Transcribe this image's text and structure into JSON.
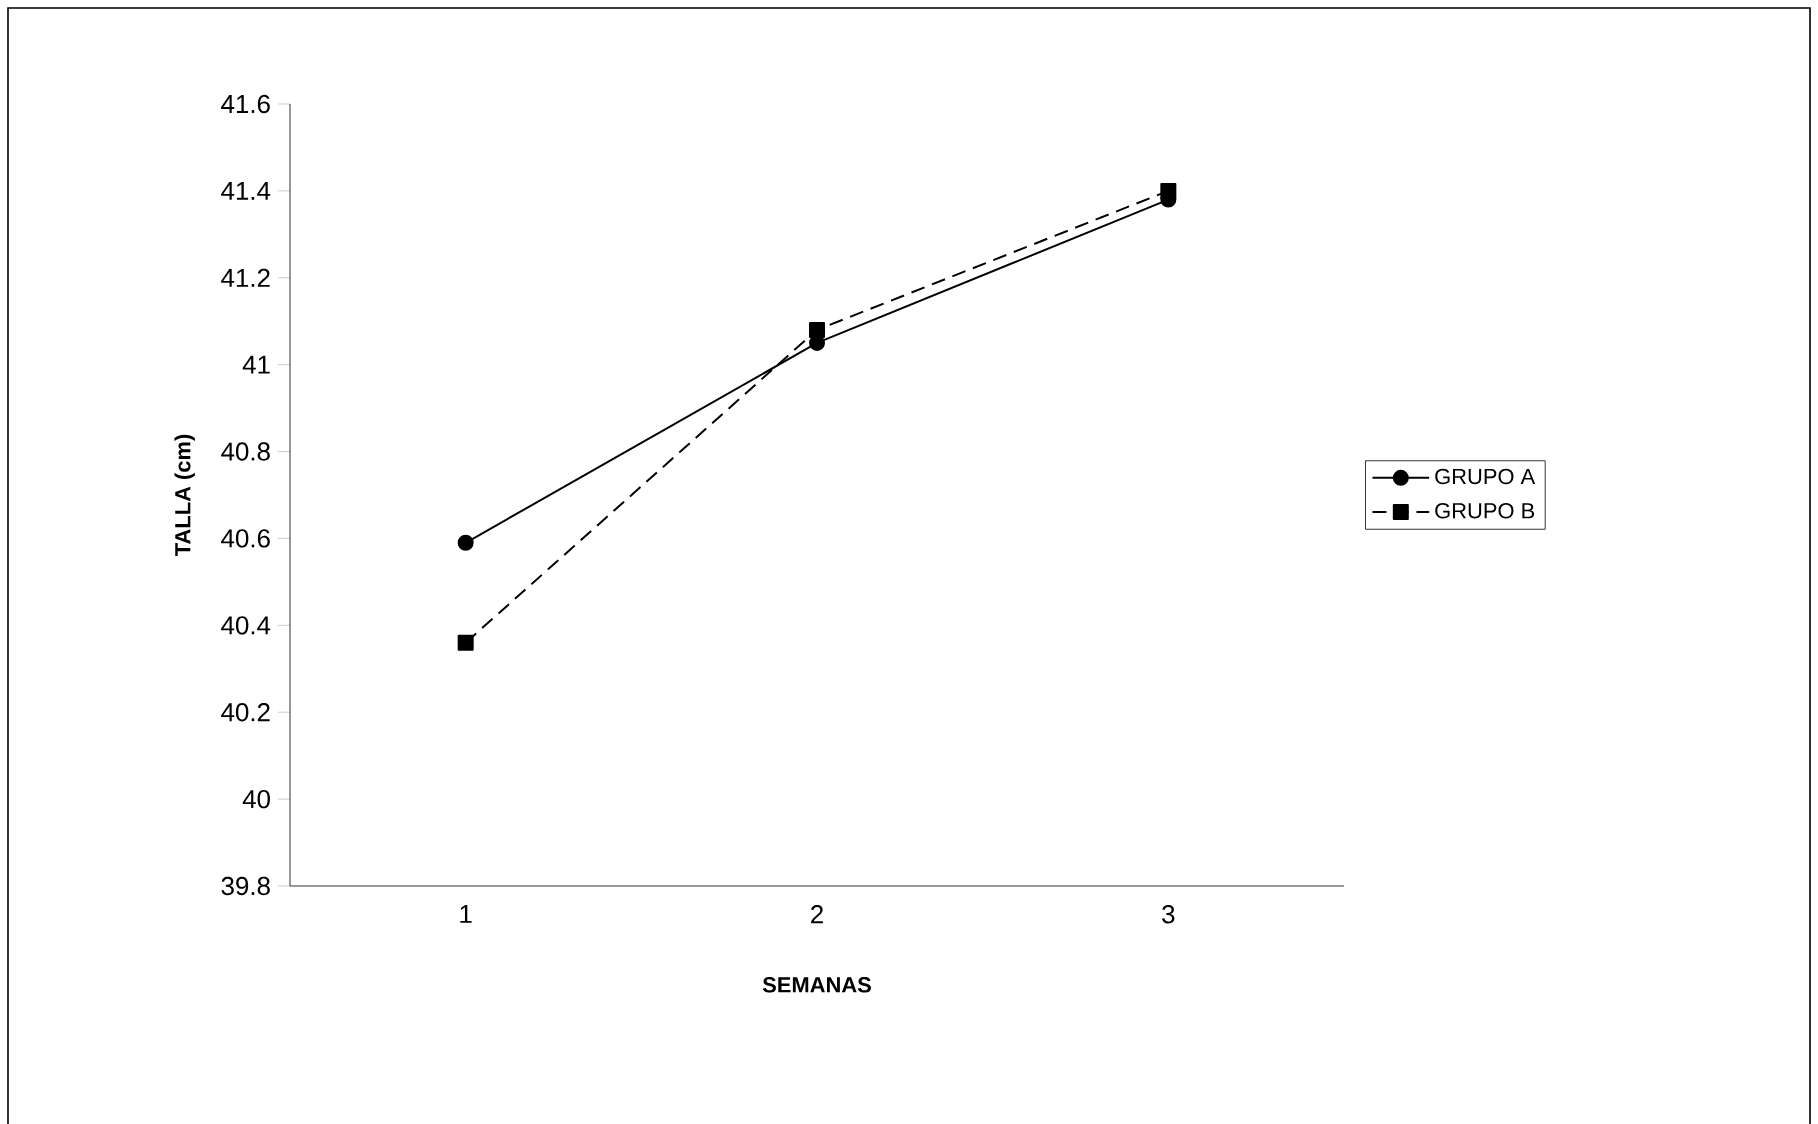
{
  "chart_data": {
    "type": "line",
    "xlabel": "SEMANAS",
    "ylabel": "TALLA (cm)",
    "categories": [
      "1",
      "2",
      "3"
    ],
    "series": [
      {
        "name": "GRUPO A",
        "color": "#000000",
        "values": [
          40.59,
          41.05,
          41.38
        ],
        "marker": "circle",
        "line_style": "solid"
      },
      {
        "name": "GRUPO B",
        "color": "#000000",
        "values": [
          40.36,
          41.08,
          41.4
        ],
        "marker": "square",
        "line_style": "dashed"
      }
    ],
    "ylim": [
      39.8,
      41.6
    ],
    "yticks": [
      39.8,
      40,
      40.2,
      40.4,
      40.6,
      40.8,
      41,
      41.2,
      41.4,
      41.6
    ],
    "grid": false,
    "legend": "right"
  }
}
